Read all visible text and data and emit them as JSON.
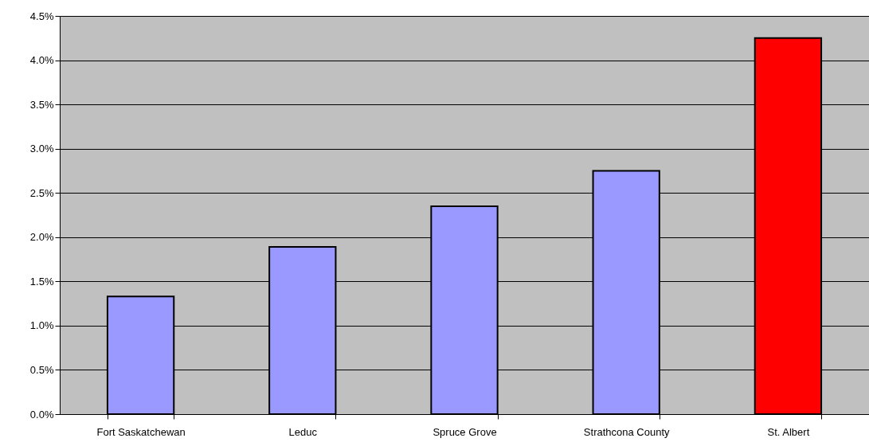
{
  "chart_data": {
    "type": "bar",
    "categories": [
      "Fort Saskatchewan",
      "Leduc",
      "Spruce Grove",
      "Strathcona County",
      "St. Albert"
    ],
    "values": [
      1.33,
      1.89,
      2.35,
      2.75,
      4.25
    ],
    "colors": [
      "#9999ff",
      "#9999ff",
      "#9999ff",
      "#9999ff",
      "#ff0000"
    ],
    "ylim": [
      0,
      4.5
    ],
    "yticks": [
      {
        "value": 0,
        "label": "0.0%"
      },
      {
        "value": 0.5,
        "label": "0.5%"
      },
      {
        "value": 1,
        "label": "1.0%"
      },
      {
        "value": 1.5,
        "label": "1.5%"
      },
      {
        "value": 2,
        "label": "2.0%"
      },
      {
        "value": 2.5,
        "label": "2.5%"
      },
      {
        "value": 3,
        "label": "3.0%"
      },
      {
        "value": 3.5,
        "label": "3.5%"
      },
      {
        "value": 4,
        "label": "4.0%"
      },
      {
        "value": 4.5,
        "label": "4.5%"
      }
    ],
    "grid": "y"
  }
}
